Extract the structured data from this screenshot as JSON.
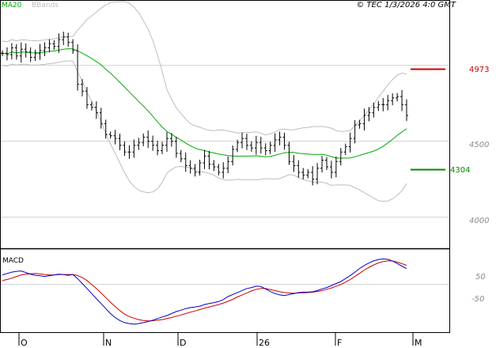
{
  "header": {
    "ma_label": "MA20",
    "bbands_label": "BBands",
    "copyright": "© TEC 1/3/2026 4:0 GMT"
  },
  "colors": {
    "ma20": "#00aa00",
    "bbands": "#bdbdbd",
    "candle": "#000000",
    "resistance": "#cc0000",
    "support": "#008800",
    "macd": "#0000cc",
    "signal": "#cc0000",
    "grid": "#d4d4d4"
  },
  "chart_data": [
    {
      "type": "candlestick",
      "ylim": [
        3650,
        5450
      ],
      "y_ticks": [
        "4000",
        "4500"
      ],
      "x_ticks": [
        "O",
        "N",
        "D",
        "26",
        "F",
        "M"
      ],
      "series": [
        {
          "name": "MA20"
        },
        {
          "name": "BBands"
        }
      ],
      "annotations": [
        {
          "label": "4973",
          "value": 4973
        },
        {
          "label": "4304",
          "value": 4304
        }
      ],
      "close": [
        5080,
        5070,
        5120,
        5060,
        5110,
        5090,
        5050,
        5080,
        5100,
        5120,
        5150,
        5130,
        5180,
        5200,
        5160,
        5100,
        4850,
        4800,
        4700,
        4680,
        4640,
        4560,
        4480,
        4470,
        4450,
        4400,
        4350,
        4350,
        4400,
        4420,
        4460,
        4430,
        4400,
        4360,
        4400,
        4450,
        4430,
        4340,
        4300,
        4250,
        4230,
        4200,
        4270,
        4320,
        4260,
        4240,
        4200,
        4230,
        4280,
        4370,
        4420,
        4450,
        4400,
        4380,
        4420,
        4380,
        4360,
        4400,
        4440,
        4460,
        4400,
        4280,
        4250,
        4200,
        4180,
        4200,
        4150,
        4230,
        4290,
        4240,
        4200,
        4280,
        4350,
        4390,
        4450,
        4550,
        4560,
        4620,
        4640,
        4680,
        4700,
        4700,
        4730,
        4750,
        4760,
        4700,
        4620
      ],
      "macd": [
        48,
        55,
        62,
        66,
        68,
        60,
        52,
        46,
        44,
        40,
        44,
        48,
        52,
        50,
        46,
        50,
        30,
        5,
        -20,
        -45,
        -70,
        -95,
        -120,
        -145,
        -165,
        -180,
        -190,
        -195,
        -198,
        -195,
        -190,
        -185,
        -178,
        -170,
        -162,
        -155,
        -145,
        -135,
        -128,
        -120,
        -115,
        -112,
        -108,
        -100,
        -95,
        -90,
        -85,
        -75,
        -60,
        -50,
        -40,
        -30,
        -20,
        -15,
        -8,
        -10,
        -22,
        -35,
        -45,
        -52,
        -55,
        -50,
        -45,
        -40,
        -38,
        -38,
        -36,
        -30,
        -22,
        -15,
        -5,
        5,
        15,
        30,
        45,
        62,
        80,
        95,
        108,
        118,
        125,
        128,
        126,
        118,
        105,
        92,
        80
      ],
      "signal": [
        20,
        25,
        32,
        40,
        48,
        52,
        54,
        55,
        53,
        50,
        48,
        48,
        50,
        50,
        50,
        50,
        45,
        35,
        20,
        0,
        -20,
        -42,
        -65,
        -88,
        -110,
        -130,
        -148,
        -160,
        -168,
        -175,
        -180,
        -182,
        -181,
        -178,
        -175,
        -170,
        -165,
        -158,
        -152,
        -145,
        -138,
        -132,
        -125,
        -118,
        -112,
        -106,
        -100,
        -92,
        -84,
        -74,
        -62,
        -52,
        -42,
        -32,
        -24,
        -20,
        -20,
        -25,
        -30,
        -36,
        -40,
        -42,
        -43,
        -42,
        -41,
        -40,
        -38,
        -35,
        -30,
        -24,
        -17,
        -8,
        0,
        12,
        25,
        40,
        56,
        72,
        86,
        98,
        108,
        115,
        118,
        118,
        112,
        104,
        96
      ]
    }
  ]
}
